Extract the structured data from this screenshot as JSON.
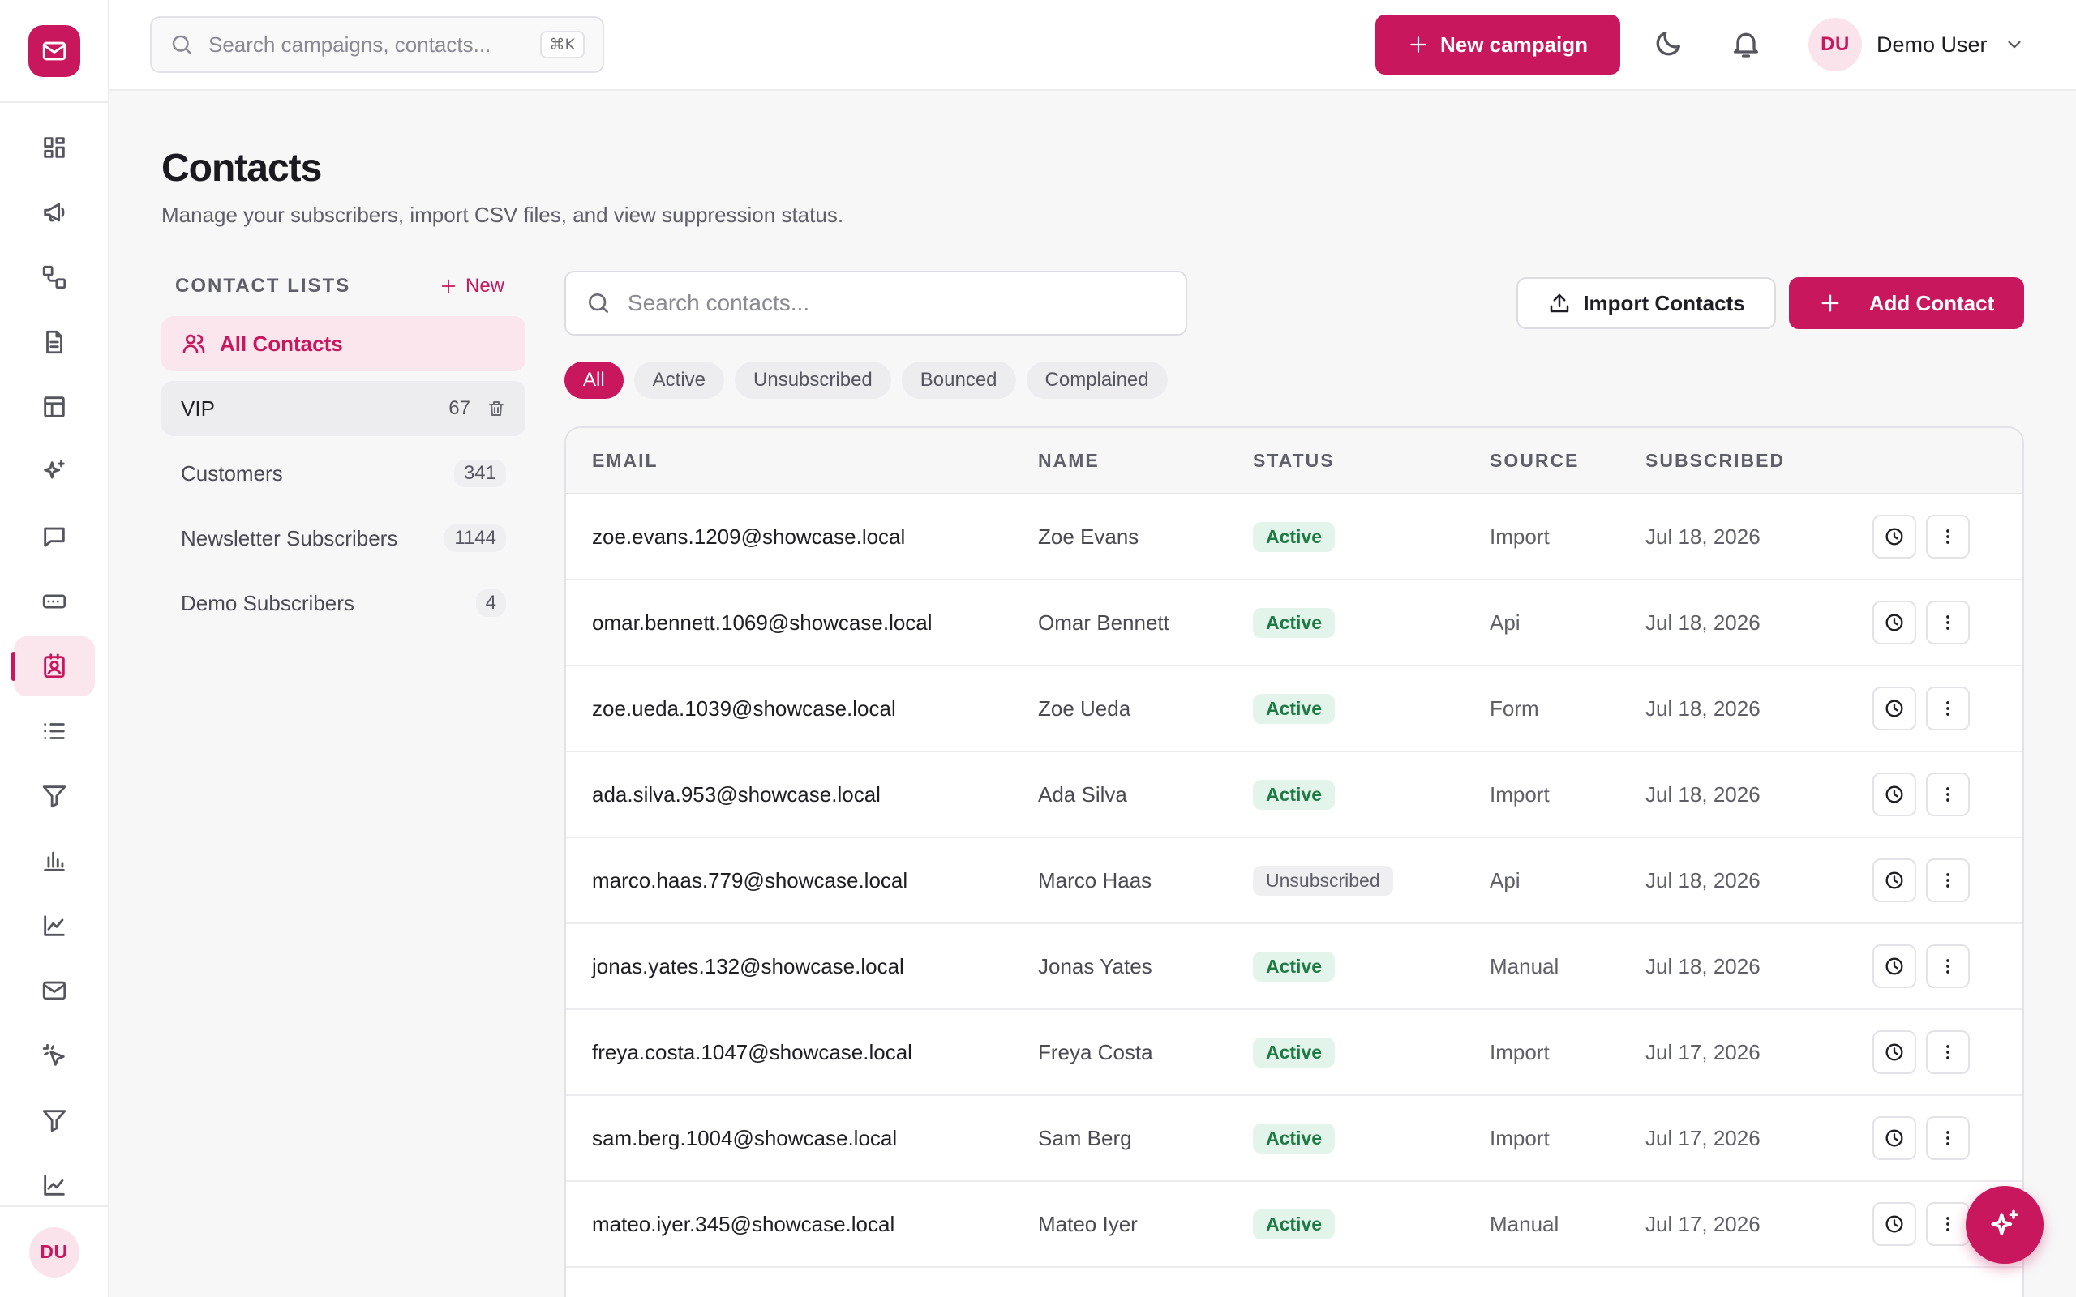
{
  "colors": {
    "accent": "#c8175d",
    "accent_soft": "#fbe6ee",
    "active_badge": "#1e7a45"
  },
  "topbar": {
    "search_placeholder": "Search campaigns, contacts...",
    "shortcut": "⌘K",
    "new_campaign_label": "New campaign",
    "user_initials": "DU",
    "user_name": "Demo User"
  },
  "sidebar": {
    "logo_icon": "mail-icon",
    "items": [
      {
        "icon": "dashboard-icon"
      },
      {
        "icon": "megaphone-icon"
      },
      {
        "icon": "workflow-icon"
      },
      {
        "icon": "document-icon"
      },
      {
        "icon": "layout-icon"
      },
      {
        "icon": "sparkles-icon"
      },
      {
        "icon": "message-icon"
      },
      {
        "icon": "keyboard-icon"
      },
      {
        "icon": "contacts-icon",
        "active": true
      },
      {
        "icon": "list-icon"
      },
      {
        "icon": "filter-icon"
      },
      {
        "icon": "bar-chart-icon"
      },
      {
        "icon": "line-chart-icon"
      },
      {
        "icon": "mail-icon"
      },
      {
        "icon": "click-icon"
      },
      {
        "icon": "funnel-icon"
      },
      {
        "icon": "trend-icon"
      }
    ],
    "user_initials": "DU"
  },
  "page": {
    "title": "Contacts",
    "subtitle": "Manage your subscribers, import CSV files, and view suppression status."
  },
  "lists": {
    "title": "CONTACT LISTS",
    "new_label": "New",
    "all_label": "All Contacts",
    "items": [
      {
        "label": "VIP",
        "count": "67"
      },
      {
        "label": "Customers",
        "count": "341"
      },
      {
        "label": "Newsletter Subscribers",
        "count": "1144"
      },
      {
        "label": "Demo Subscribers",
        "count": "4"
      }
    ]
  },
  "toolbar": {
    "search_placeholder": "Search contacts...",
    "import_label": "Import Contacts",
    "add_label": "Add Contact"
  },
  "filters": [
    "All",
    "Active",
    "Unsubscribed",
    "Bounced",
    "Complained"
  ],
  "table": {
    "columns": [
      "EMAIL",
      "NAME",
      "STATUS",
      "SOURCE",
      "SUBSCRIBED"
    ],
    "rows": [
      {
        "email": "zoe.evans.1209@showcase.local",
        "name": "Zoe Evans",
        "status": "Active",
        "source": "Import",
        "subscribed": "Jul 18, 2026"
      },
      {
        "email": "omar.bennett.1069@showcase.local",
        "name": "Omar Bennett",
        "status": "Active",
        "source": "Api",
        "subscribed": "Jul 18, 2026"
      },
      {
        "email": "zoe.ueda.1039@showcase.local",
        "name": "Zoe Ueda",
        "status": "Active",
        "source": "Form",
        "subscribed": "Jul 18, 2026"
      },
      {
        "email": "ada.silva.953@showcase.local",
        "name": "Ada Silva",
        "status": "Active",
        "source": "Import",
        "subscribed": "Jul 18, 2026"
      },
      {
        "email": "marco.haas.779@showcase.local",
        "name": "Marco Haas",
        "status": "Unsubscribed",
        "source": "Api",
        "subscribed": "Jul 18, 2026"
      },
      {
        "email": "jonas.yates.132@showcase.local",
        "name": "Jonas Yates",
        "status": "Active",
        "source": "Manual",
        "subscribed": "Jul 18, 2026"
      },
      {
        "email": "freya.costa.1047@showcase.local",
        "name": "Freya Costa",
        "status": "Active",
        "source": "Import",
        "subscribed": "Jul 17, 2026"
      },
      {
        "email": "sam.berg.1004@showcase.local",
        "name": "Sam Berg",
        "status": "Active",
        "source": "Import",
        "subscribed": "Jul 17, 2026"
      },
      {
        "email": "mateo.iyer.345@showcase.local",
        "name": "Mateo Iyer",
        "status": "Active",
        "source": "Manual",
        "subscribed": "Jul 17, 2026"
      }
    ]
  }
}
